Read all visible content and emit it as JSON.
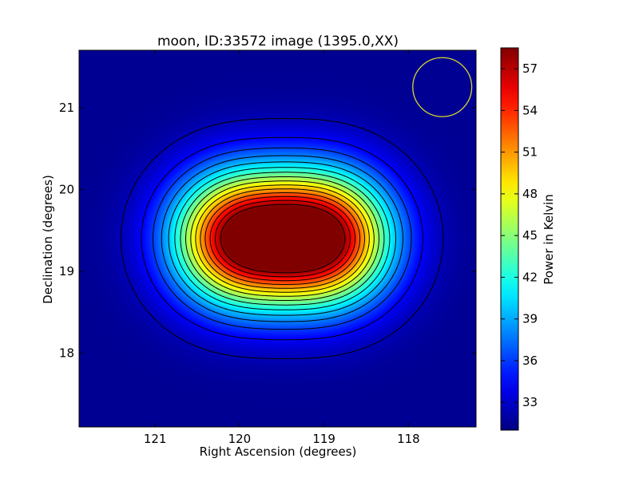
{
  "chart_data": {
    "type": "heatmap",
    "title": "moon, ID:33572 image (1395.0,XX)",
    "xlabel": "Right Ascension (degrees)",
    "ylabel": "Declination (degrees)",
    "xlim": [
      121.9,
      117.2
    ],
    "ylim": [
      17.1,
      21.7
    ],
    "x_ticks": [
      121,
      120,
      119,
      118
    ],
    "y_ticks": [
      18,
      19,
      20,
      21
    ],
    "colormap": "jet",
    "colorbar": {
      "label": "Power in Kelvin",
      "range": [
        31.0,
        58.5
      ],
      "ticks": [
        33,
        36,
        39,
        42,
        45,
        48,
        51,
        54,
        57
      ]
    },
    "background_value": 31.5,
    "sources": [
      {
        "ra": 120.0,
        "dec": 19.4,
        "peak": 26.0
      },
      {
        "ra": 119.0,
        "dec": 19.4,
        "peak": 26.8
      }
    ],
    "source_width_deg": 0.55,
    "contour_levels": [
      32.5,
      34.3,
      36.1,
      37.9,
      39.7,
      41.5,
      43.3,
      45.1,
      46.9,
      48.7,
      50.5,
      52.3,
      54.1,
      55.9,
      57.7
    ],
    "beam_circle": {
      "ra": 117.6,
      "dec": 21.25,
      "radius_deg": 0.36,
      "color": "#d9d92a"
    },
    "grid": false,
    "legend": "none"
  }
}
